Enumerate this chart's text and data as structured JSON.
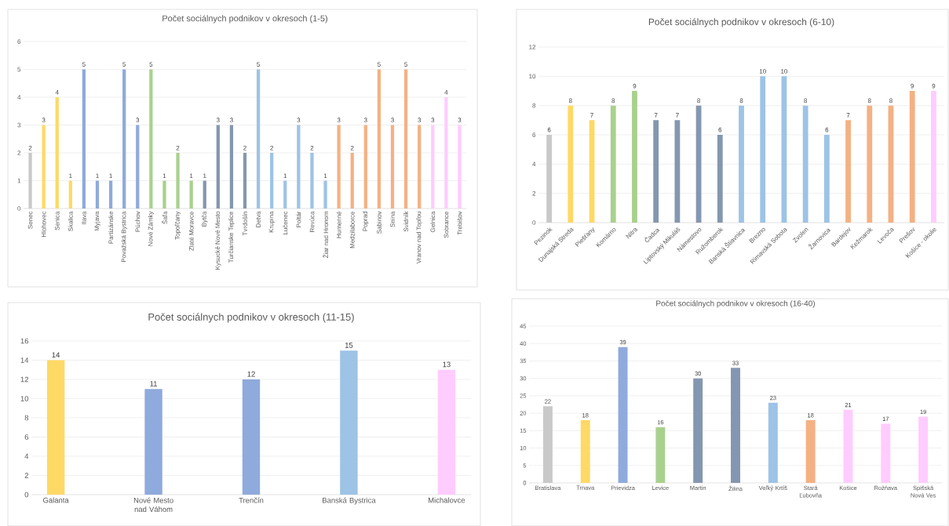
{
  "chart_data": [
    {
      "type": "bar",
      "title": "Počet sociálnych podnikov v okresoch (1-5)",
      "categories": [
        "Senec",
        "Hlohovec",
        "Senica",
        "Skalica",
        "Ilava",
        "Myjava",
        "Partizánske",
        "Považská Bystrica",
        "Púchov",
        "Nové Zámky",
        "Šaľa",
        "Topoľčany",
        "Zlaté Moravce",
        "Bytča",
        "Kysucké Nové Mesto",
        "Turčianske Teplice",
        "Tvrdošín",
        "Detva",
        "Krupina",
        "Lučenec",
        "Poltár",
        "Revúca",
        "Žiar nad Hronom",
        "Humenné",
        "Medzilaborce",
        "Poprad",
        "Sabinov",
        "Snina",
        "Svidník",
        "Vranov nad Topľou",
        "Gelnica",
        "Sobrance",
        "Trebišov"
      ],
      "values": [
        2,
        3,
        4,
        1,
        5,
        1,
        1,
        5,
        3,
        5,
        1,
        2,
        1,
        1,
        3,
        3,
        2,
        5,
        2,
        1,
        3,
        2,
        1,
        3,
        2,
        3,
        5,
        3,
        5,
        3,
        3,
        4,
        3
      ],
      "colors": [
        "#c9c9c9",
        "#ffd966",
        "#ffd966",
        "#ffd966",
        "#8faadc",
        "#8faadc",
        "#8faadc",
        "#8faadc",
        "#8faadc",
        "#a9d18e",
        "#a9d18e",
        "#a9d18e",
        "#a9d18e",
        "#8497b0",
        "#8497b0",
        "#8497b0",
        "#8497b0",
        "#9dc3e6",
        "#9dc3e6",
        "#9dc3e6",
        "#9dc3e6",
        "#9dc3e6",
        "#9dc3e6",
        "#f4b183",
        "#f4b183",
        "#f4b183",
        "#f4b183",
        "#f4b183",
        "#f4b183",
        "#f4b183",
        "#ffccff",
        "#ffccff",
        "#ffccff"
      ],
      "ylim": [
        0,
        6
      ],
      "yticks": [
        0,
        1,
        2,
        3,
        4,
        5,
        6
      ],
      "grid": "y",
      "data_labels": true
    },
    {
      "type": "bar",
      "title": "Počet sociálnych podnikov v okresoch (6-10)",
      "categories": [
        "Pezinok",
        "Dunajská Streda",
        "Piešťany",
        "Komárno",
        "Nitra",
        "Čadca",
        "Liptovský Mikuláš",
        "Námestovo",
        "Ružomberok",
        "Banská Štiavnica",
        "Brezno",
        "Rimavská Sobota",
        "Zvolen",
        "Žarnovica",
        "Bardejov",
        "Kežmarok",
        "Levoča",
        "Prešov",
        "Košice - okolie"
      ],
      "values": [
        6,
        8,
        7,
        8,
        9,
        7,
        7,
        8,
        6,
        8,
        10,
        10,
        8,
        6,
        7,
        8,
        8,
        9,
        9
      ],
      "colors": [
        "#c9c9c9",
        "#ffd966",
        "#ffd966",
        "#a9d18e",
        "#a9d18e",
        "#8497b0",
        "#8497b0",
        "#8497b0",
        "#8497b0",
        "#9dc3e6",
        "#9dc3e6",
        "#9dc3e6",
        "#9dc3e6",
        "#9dc3e6",
        "#f4b183",
        "#f4b183",
        "#f4b183",
        "#f4b183",
        "#ffccff"
      ],
      "ylim": [
        0,
        12
      ],
      "yticks": [
        0,
        2,
        4,
        6,
        8,
        10,
        12
      ],
      "grid": "y",
      "data_labels": true
    },
    {
      "type": "bar",
      "title": "Počet sociálnych podnikov v okresoch (11-15)",
      "categories": [
        "Galanta",
        "Nové Mesto nad Váhom",
        "Trenčín",
        "Banská Bystrica",
        "Michalovce"
      ],
      "values": [
        14,
        11,
        12,
        15,
        13
      ],
      "colors": [
        "#ffd966",
        "#8faadc",
        "#8faadc",
        "#9dc3e6",
        "#ffccff"
      ],
      "ylim": [
        0,
        16
      ],
      "yticks": [
        0,
        2,
        4,
        6,
        8,
        10,
        12,
        14,
        16
      ],
      "grid": "y",
      "data_labels": true
    },
    {
      "type": "bar",
      "title": "Počet sociálnych podnikov v okresoch (16-40)",
      "categories": [
        "Bratislava",
        "Trnava",
        "Prievidza",
        "Levice",
        "Martin",
        "Žilina",
        "Veľký Krtíš",
        "Stará Ľubovňa",
        "Košice",
        "Rožňava",
        "Spišská Nová Ves"
      ],
      "values": [
        22,
        18,
        39,
        16,
        30,
        33,
        23,
        18,
        21,
        17,
        19
      ],
      "colors": [
        "#c9c9c9",
        "#ffd966",
        "#8faadc",
        "#a9d18e",
        "#8497b0",
        "#8497b0",
        "#9dc3e6",
        "#f4b183",
        "#ffccff",
        "#ffccff",
        "#ffccff"
      ],
      "ylim": [
        0,
        45
      ],
      "yticks": [
        0,
        5,
        10,
        15,
        20,
        25,
        30,
        35,
        40,
        45
      ],
      "grid": "y",
      "data_labels": true
    }
  ]
}
